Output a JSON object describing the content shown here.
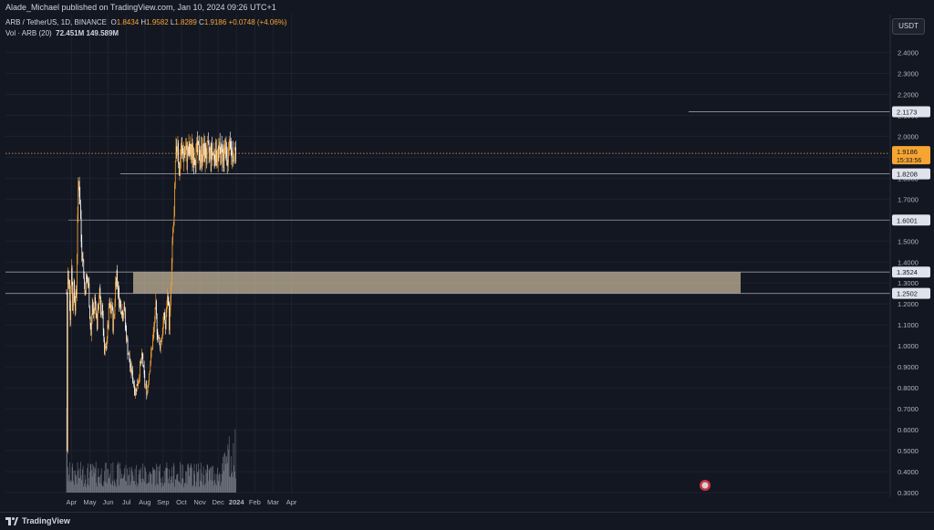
{
  "header": {
    "published_text": "Alade_Michael published on TradingView.com, Jan 10, 2024 09:26 UTC+1"
  },
  "legend": {
    "symbol": "ARB / TetherUS, 1D, BINANCE",
    "open_label": "O",
    "open": "1.8434",
    "high_label": "H",
    "high": "1.9582",
    "low_label": "L",
    "low": "1.8289",
    "close_label": "C",
    "close": "1.9186",
    "change": "+0.0748 (+4.06%)",
    "vol_label": "Vol · ARB (20)",
    "vol_value": "72.451M",
    "vol_ma": "149.589M"
  },
  "currency_button": "USDT",
  "footer": {
    "brand": "TradingView"
  },
  "colors": {
    "up": "#f7a531",
    "down": "#ffffff",
    "zone": "#e8d5b0",
    "price_tag": "#f7a531",
    "background": "#131722"
  },
  "chart_data": {
    "type": "candlestick",
    "x_ticks": [
      "Apr",
      "May",
      "Jun",
      "Jul",
      "Aug",
      "Sep",
      "Oct",
      "Nov",
      "Dec",
      "2024",
      "Feb",
      "Mar",
      "Apr"
    ],
    "y_ticks": [
      "2.4000",
      "2.3000",
      "2.2000",
      "2.1000",
      "2.0000",
      "1.9000",
      "1.8000",
      "1.7000",
      "1.6000",
      "1.5000",
      "1.4000",
      "1.3000",
      "1.2000",
      "1.1000",
      "1.0000",
      "0.9000",
      "0.8000",
      "0.7000",
      "0.6000",
      "0.5000",
      "0.4000",
      "0.3000"
    ],
    "ylim": [
      0.3,
      2.45
    ],
    "current_price": {
      "value": "1.9186",
      "countdown": "15:33:56"
    },
    "levels": [
      "2.1173",
      "1.8208",
      "1.6001",
      "1.3524",
      "1.2502"
    ],
    "zone": {
      "low": 1.2502,
      "high": 1.3524
    },
    "path_days": [
      0,
      1,
      2,
      3,
      4,
      6,
      8,
      10,
      12,
      14,
      16,
      18,
      20,
      22,
      24,
      26,
      28,
      30,
      32,
      34,
      36,
      38,
      40,
      42,
      44,
      46,
      48,
      50,
      52,
      54,
      56,
      58,
      60,
      62,
      64,
      66,
      68,
      70,
      72,
      74,
      76,
      78,
      80,
      82,
      84,
      86,
      88,
      90,
      92,
      94,
      96,
      98,
      100,
      102,
      104,
      106,
      108,
      110,
      112,
      114,
      116,
      118,
      120,
      122,
      124,
      126,
      128,
      130,
      132,
      134,
      136,
      138,
      140,
      142,
      144,
      146,
      148,
      150,
      152,
      154,
      156,
      158,
      160,
      162,
      164,
      166,
      168,
      170,
      172,
      174,
      176,
      178,
      180,
      182,
      184,
      186,
      188,
      190,
      192,
      194,
      196,
      198,
      200,
      202,
      204,
      206,
      208,
      210,
      212,
      214,
      216,
      218,
      220,
      222,
      224,
      226,
      228,
      230,
      232,
      234,
      236,
      238,
      240,
      242,
      244,
      246,
      248,
      250,
      252,
      254,
      256,
      258,
      260,
      262,
      264,
      266,
      268,
      270,
      272,
      274,
      276,
      278,
      280,
      282,
      284,
      286,
      288
    ],
    "path_prices": [
      1.25,
      0.5,
      1.35,
      1.28,
      1.3,
      1.15,
      1.4,
      1.18,
      1.3,
      1.2,
      1.25,
      1.65,
      1.78,
      1.7,
      1.5,
      1.45,
      1.35,
      1.25,
      1.32,
      1.3,
      1.28,
      1.15,
      1.05,
      1.2,
      1.15,
      1.22,
      1.18,
      1.1,
      1.2,
      1.25,
      1.15,
      1.2,
      1.1,
      0.95,
      0.98,
      1.05,
      1.1,
      1.2,
      1.15,
      1.2,
      1.1,
      1.15,
      1.3,
      1.35,
      1.28,
      1.22,
      1.2,
      1.18,
      1.15,
      1.2,
      1.1,
      1.05,
      0.98,
      0.95,
      0.9,
      0.88,
      0.85,
      0.82,
      0.78,
      0.8,
      0.82,
      0.85,
      0.9,
      0.92,
      0.95,
      0.88,
      0.82,
      0.8,
      0.78,
      0.85,
      0.9,
      0.95,
      1.0,
      1.05,
      1.12,
      1.18,
      1.08,
      1.05,
      1.0,
      1.02,
      1.05,
      1.1,
      1.15,
      1.08,
      1.2,
      1.25,
      1.1,
      1.2,
      1.38,
      1.55,
      1.6,
      1.85,
      1.95,
      2.0,
      1.8,
      1.9,
      1.93,
      1.92,
      1.92,
      1.92,
      1.92,
      1.92,
      1.92,
      1.92,
      1.92,
      1.92,
      1.92,
      1.92,
      1.92,
      1.92,
      1.92,
      1.92,
      1.92,
      1.92,
      1.92,
      1.92,
      1.92,
      1.92,
      1.92,
      1.92,
      1.92,
      1.92,
      1.92,
      1.92,
      1.92,
      1.92,
      1.92,
      1.92,
      1.92,
      1.92,
      1.92,
      1.92,
      1.92,
      1.92,
      1.92,
      1.92,
      1.92,
      1.92,
      1.92,
      1.92,
      1.92,
      1.92,
      1.92,
      1.92,
      1.92,
      1.92,
      1.92
    ]
  }
}
